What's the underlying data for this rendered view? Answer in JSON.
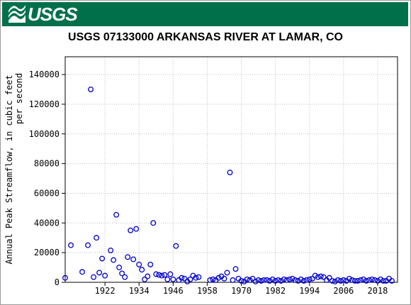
{
  "header": {
    "logo_text": "USGS",
    "brand_color": "#00704a"
  },
  "chart_data": {
    "type": "scatter",
    "title": "USGS 07133000 ARKANSAS RIVER AT LAMAR, CO",
    "xlabel": "",
    "ylabel_line1": "Annual Peak Streamflow, in cubic feet",
    "ylabel_line2": "per second",
    "xlim": [
      1908,
      2025
    ],
    "ylim": [
      0,
      152000
    ],
    "x_ticks": [
      1922,
      1934,
      1946,
      1958,
      1970,
      1982,
      1994,
      2006,
      2018
    ],
    "y_ticks": [
      0,
      20000,
      40000,
      60000,
      80000,
      100000,
      120000,
      140000
    ],
    "grid": true,
    "marker": "open-circle",
    "marker_color": "#0000cc",
    "series": [
      {
        "x": [
          1908,
          1910,
          1914,
          1916,
          1917,
          1918,
          1919,
          1920,
          1921,
          1922,
          1924,
          1925,
          1926,
          1927,
          1928,
          1929,
          1930,
          1931,
          1932,
          1933,
          1934,
          1935,
          1936,
          1937,
          1938,
          1939,
          1940,
          1941,
          1942,
          1943,
          1944,
          1945,
          1946,
          1947,
          1948,
          1949,
          1950,
          1951,
          1952,
          1953,
          1954,
          1955,
          1959,
          1960,
          1961,
          1962,
          1963,
          1964,
          1965,
          1966,
          1967,
          1968,
          1969,
          1970,
          1971,
          1972,
          1973,
          1974,
          1975,
          1976,
          1977,
          1978,
          1979,
          1980,
          1981,
          1982,
          1983,
          1984,
          1985,
          1986,
          1987,
          1988,
          1989,
          1990,
          1991,
          1992,
          1993,
          1994,
          1995,
          1996,
          1997,
          1998,
          1999,
          2000,
          2001,
          2002,
          2003,
          2004,
          2005,
          2006,
          2007,
          2008,
          2009,
          2010,
          2011,
          2012,
          2013,
          2014,
          2015,
          2016,
          2017,
          2018,
          2019,
          2020,
          2021,
          2022,
          2023
        ],
        "y": [
          3000,
          25000,
          7000,
          25000,
          130000,
          3500,
          30000,
          6500,
          16000,
          4500,
          21500,
          15000,
          45500,
          10000,
          6000,
          3500,
          17000,
          35000,
          15500,
          36000,
          12000,
          8500,
          2000,
          4000,
          12000,
          40000,
          5500,
          5000,
          4500,
          5000,
          2000,
          5500,
          2000,
          24500,
          1500,
          3000,
          2500,
          500,
          2000,
          4500,
          3000,
          3500,
          1500,
          2000,
          1500,
          3000,
          4000,
          2500,
          6500,
          74000,
          1500,
          9000,
          2500,
          1000,
          500,
          2000,
          1500,
          2500,
          500,
          1500,
          1000,
          1500,
          1500,
          1000,
          2000,
          1000,
          1500,
          1000,
          2000,
          1500,
          2000,
          2500,
          1500,
          1000,
          2000,
          1000,
          1500,
          2000,
          2500,
          4500,
          3500,
          4000,
          3500,
          1500,
          3000,
          1000,
          500,
          1500,
          1000,
          1500,
          1000,
          2500,
          1500,
          1000,
          1000,
          1500,
          2000,
          1000,
          1500,
          2000,
          1500,
          1000,
          2000,
          1000,
          1000,
          2500,
          1000
        ]
      }
    ]
  }
}
